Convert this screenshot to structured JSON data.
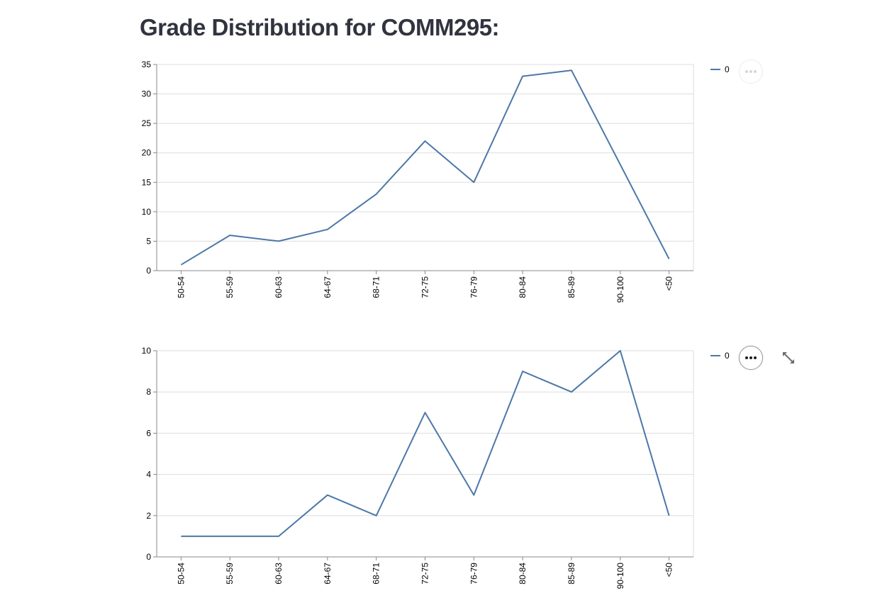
{
  "page": {
    "title": "Grade Distribution for COMM295:"
  },
  "colors": {
    "line": "#4c78a8",
    "grid": "#dddddd",
    "axis": "#888888"
  },
  "icons": {
    "menu": "ellipsis-icon",
    "expand": "fullscreen-expand-icon"
  },
  "chart_data": [
    {
      "type": "line",
      "title": "",
      "xlabel": "",
      "ylabel": "",
      "categories": [
        "50-54",
        "55-59",
        "60-63",
        "64-67",
        "68-71",
        "72-75",
        "76-79",
        "80-84",
        "85-89",
        "90-100",
        "<50"
      ],
      "series": [
        {
          "name": "0",
          "values": [
            1,
            6,
            5,
            7,
            13,
            22,
            15,
            33,
            34,
            18,
            2
          ]
        }
      ],
      "ylim": [
        0,
        35
      ],
      "yticks": [
        0,
        5,
        10,
        15,
        20,
        25,
        30,
        35
      ],
      "grid": true,
      "legend": "top-right"
    },
    {
      "type": "line",
      "title": "",
      "xlabel": "",
      "ylabel": "",
      "categories": [
        "50-54",
        "55-59",
        "60-63",
        "64-67",
        "68-71",
        "72-75",
        "76-79",
        "80-84",
        "85-89",
        "90-100",
        "<50"
      ],
      "series": [
        {
          "name": "0",
          "values": [
            1,
            1,
            1,
            3,
            2,
            7,
            3,
            9,
            8,
            10,
            2
          ]
        }
      ],
      "ylim": [
        0,
        10
      ],
      "yticks": [
        0,
        2,
        4,
        6,
        8,
        10
      ],
      "grid": true,
      "legend": "top-right"
    }
  ]
}
